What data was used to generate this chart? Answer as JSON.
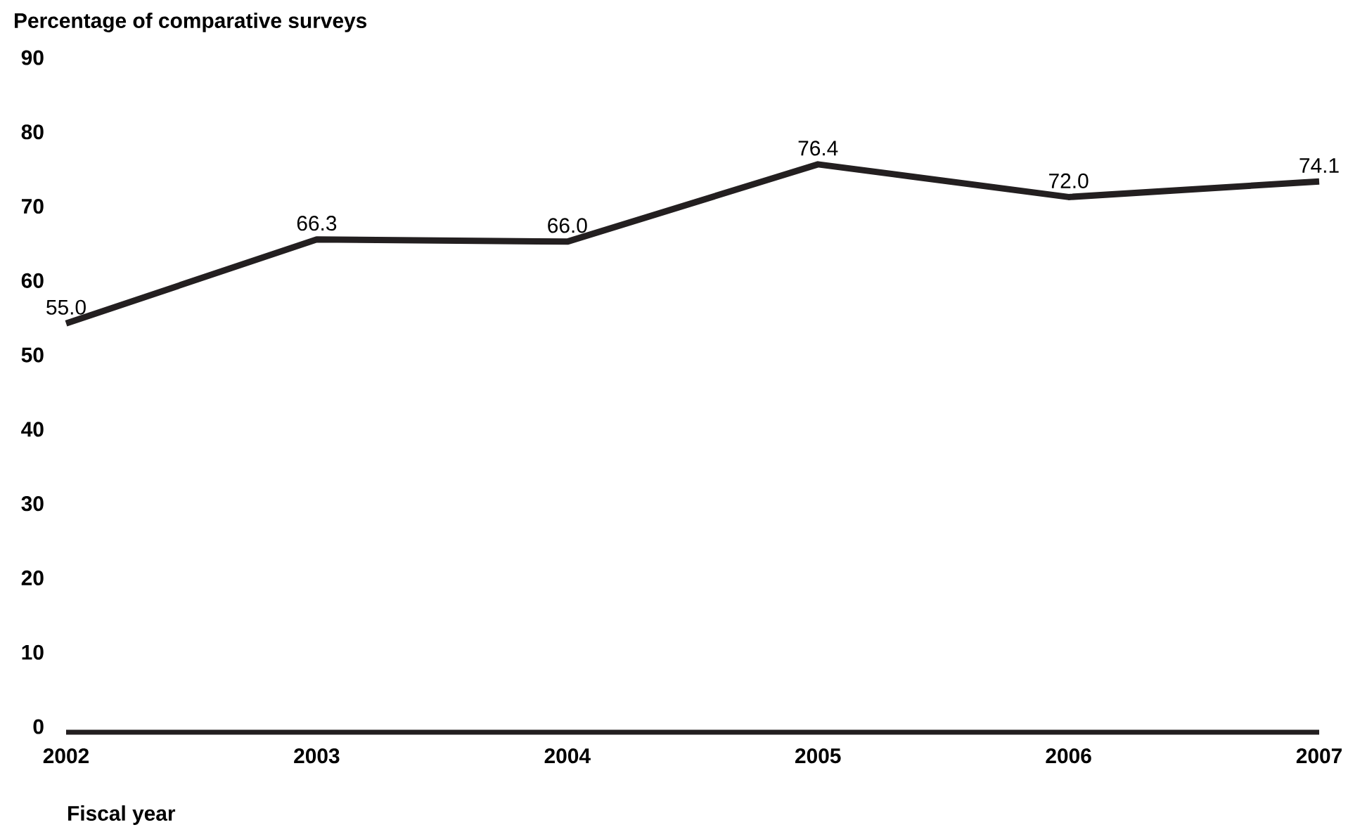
{
  "chart_data": {
    "type": "line",
    "ylabel": "Percentage of comparative surveys",
    "xlabel": "Fiscal year",
    "x": [
      2002,
      2003,
      2004,
      2005,
      2006,
      2007
    ],
    "values": [
      55.0,
      66.3,
      66.0,
      76.4,
      72.0,
      74.1
    ],
    "value_labels": [
      "55.0",
      "66.3",
      "66.0",
      "76.4",
      "72.0",
      "74.1"
    ],
    "color": "#231f20",
    "xlim": [
      2002,
      2007
    ],
    "ylim": [
      0,
      90
    ],
    "yticks": [
      0,
      10,
      20,
      30,
      40,
      50,
      60,
      70,
      80,
      90
    ],
    "xticks": [
      2002,
      2003,
      2004,
      2005,
      2006,
      2007
    ],
    "grid": false,
    "marker": "none",
    "line_style": "solid"
  }
}
